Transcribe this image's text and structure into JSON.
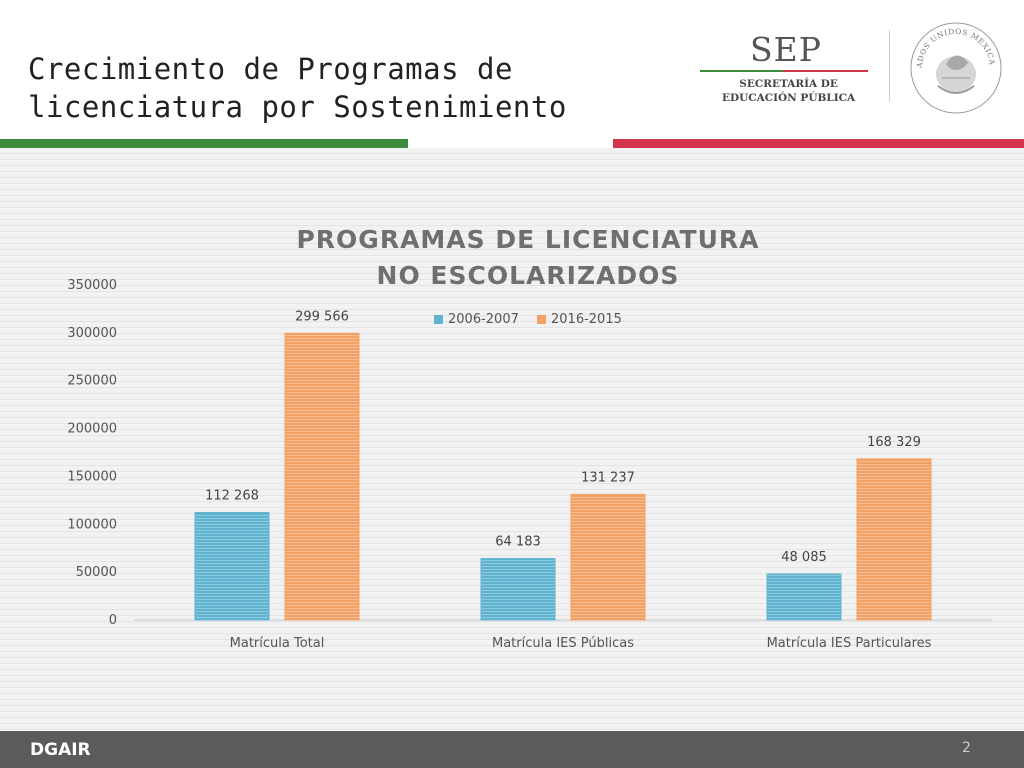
{
  "slide": {
    "title_line1": "Crecimiento de Programas de",
    "title_line2": "licenciatura por Sostenimiento",
    "page_number": "2"
  },
  "logo": {
    "name": "SEP",
    "subtitle_line1": "SECRETARÍA DE",
    "subtitle_line2": "EDUCACIÓN PÚBLICA",
    "seal_text": "ESTADOS UNIDOS MEXICANOS"
  },
  "footer": {
    "brand": "DGAIR"
  },
  "colors": {
    "series_2006": "#5fb3cf",
    "series_2016": "#f2a064",
    "green": "#3d8b3d",
    "red": "#d2344b"
  },
  "chart_data": {
    "type": "bar",
    "title_line1": "PROGRAMAS DE LICENCIATURA",
    "title_line2": "NO ESCOLARIZADOS",
    "categories": [
      "Matrícula Total",
      "Matrícula IES Públicas",
      "Matrícula IES Particulares"
    ],
    "series": [
      {
        "name": "2006-2007",
        "values": [
          112268,
          64183,
          48085
        ],
        "labels": [
          "112 268",
          "64 183",
          "48 085"
        ]
      },
      {
        "name": "2016-2015",
        "values": [
          299566,
          131237,
          168329
        ],
        "labels": [
          "299 566",
          "131 237",
          "168 329"
        ]
      }
    ],
    "ylim": [
      0,
      350000
    ],
    "yticks": [
      "0",
      "50000",
      "100000",
      "150000",
      "200000",
      "250000",
      "300000",
      "350000"
    ],
    "legend_position": "top",
    "grid": false
  }
}
